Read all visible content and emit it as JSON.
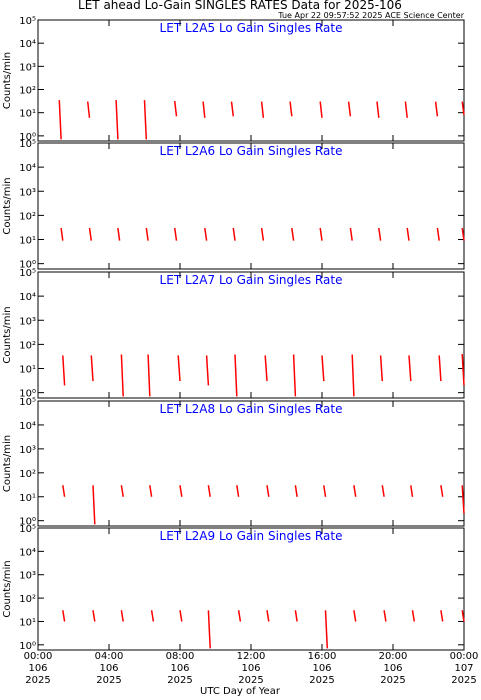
{
  "chart_data": {
    "type": "line",
    "title": "LET ahead Lo-Gain SINGLES RATES Data for 2025-106",
    "subtitle": "Tue Apr 22 09:57:52 2025 ACE Science Center",
    "xlabel": "UTC Day of Year",
    "ylabel": "Counts/min",
    "log_y": true,
    "xlim": [
      0,
      24
    ],
    "xticks": [
      {
        "value": 0,
        "label": "00:00"
      },
      {
        "value": 4,
        "label": "04:00"
      },
      {
        "value": 8,
        "label": "08:00"
      },
      {
        "value": 12,
        "label": "12:00"
      },
      {
        "value": 16,
        "label": "16:00"
      },
      {
        "value": 20,
        "label": "20:00"
      },
      {
        "value": 24,
        "label": "00:00"
      }
    ],
    "xtick_days": [
      "106",
      "106",
      "106",
      "106",
      "106",
      "106",
      "107"
    ],
    "xtick_years": [
      "2025",
      "2025",
      "2025",
      "2025",
      "2025",
      "2025",
      "2025"
    ],
    "ylim": [
      0.6,
      100000
    ],
    "yticks": [
      {
        "value": 1,
        "label": "10⁰"
      },
      {
        "value": 10,
        "label": "10¹"
      },
      {
        "value": 100,
        "label": "10²"
      },
      {
        "value": 1000,
        "label": "10³"
      },
      {
        "value": 10000,
        "label": "10⁴"
      },
      {
        "value": 100000,
        "label": "10⁵"
      }
    ],
    "panels": [
      {
        "title": "LET L2A5 Lo Gain Singles Rate",
        "color": "#ff0000",
        "x": [
          1.2,
          1.3,
          null,
          2.8,
          2.9,
          null,
          4.4,
          4.5,
          null,
          6.0,
          6.1,
          null,
          7.7,
          7.8,
          null,
          9.3,
          9.4,
          null,
          10.9,
          11.0,
          null,
          12.6,
          12.7,
          null,
          14.2,
          14.3,
          null,
          15.9,
          16.0,
          null,
          17.5,
          17.6,
          null,
          19.1,
          19.2,
          null,
          20.7,
          20.8,
          null,
          22.4,
          22.5,
          null,
          23.9,
          24.0
        ],
        "values": [
          35,
          0.7,
          null,
          30,
          6,
          null,
          35,
          0.7,
          null,
          35,
          0.7,
          null,
          32,
          7,
          null,
          30,
          6,
          null,
          30,
          7,
          null,
          30,
          6,
          null,
          30,
          7,
          null,
          30,
          6,
          null,
          30,
          7,
          null,
          30,
          6,
          null,
          30,
          6,
          null,
          30,
          7,
          null,
          30,
          8
        ]
      },
      {
        "title": "LET L2A6 Lo Gain Singles Rate",
        "color": "#ff0000",
        "x": [
          1.3,
          1.4,
          null,
          2.9,
          3.0,
          null,
          4.5,
          4.6,
          null,
          6.1,
          6.2,
          null,
          7.7,
          7.8,
          null,
          9.4,
          9.5,
          null,
          11.0,
          11.1,
          null,
          12.6,
          12.7,
          null,
          14.3,
          14.4,
          null,
          15.9,
          16.0,
          null,
          17.6,
          17.7,
          null,
          19.2,
          19.3,
          null,
          20.8,
          20.9,
          null,
          22.5,
          22.6,
          null,
          23.9,
          24.0
        ],
        "values": [
          30,
          9,
          null,
          30,
          9,
          null,
          30,
          9,
          null,
          30,
          9,
          null,
          30,
          9,
          null,
          30,
          9,
          null,
          30,
          9,
          null,
          30,
          9,
          null,
          30,
          9,
          null,
          30,
          9,
          null,
          30,
          9,
          null,
          30,
          9,
          null,
          30,
          9,
          null,
          30,
          9,
          null,
          30,
          9
        ]
      },
      {
        "title": "LET L2A7 Lo Gain Singles Rate",
        "color": "#ff0000",
        "x": [
          1.4,
          1.5,
          null,
          3.0,
          3.1,
          null,
          4.7,
          4.8,
          null,
          6.2,
          6.3,
          null,
          7.9,
          8.0,
          null,
          9.5,
          9.6,
          null,
          11.1,
          11.2,
          null,
          12.8,
          12.9,
          null,
          14.4,
          14.5,
          null,
          16.0,
          16.1,
          null,
          17.7,
          17.8,
          null,
          19.3,
          19.4,
          null,
          20.9,
          21.0,
          null,
          22.6,
          22.7,
          null,
          23.9,
          24.0
        ],
        "values": [
          35,
          2,
          null,
          35,
          3,
          null,
          38,
          0.7,
          null,
          38,
          0.7,
          null,
          35,
          3,
          null,
          35,
          2,
          null,
          38,
          0.7,
          null,
          35,
          3,
          null,
          38,
          0.7,
          null,
          35,
          3,
          null,
          38,
          0.7,
          null,
          35,
          3,
          null,
          35,
          3,
          null,
          35,
          3,
          null,
          40,
          2
        ]
      },
      {
        "title": "LET L2A8 Lo Gain Singles Rate",
        "color": "#ff0000",
        "x": [
          1.4,
          1.5,
          null,
          3.1,
          3.2,
          null,
          4.7,
          4.8,
          null,
          6.3,
          6.4,
          null,
          8.0,
          8.1,
          null,
          9.6,
          9.7,
          null,
          11.2,
          11.3,
          null,
          12.9,
          13.0,
          null,
          14.5,
          14.6,
          null,
          16.1,
          16.2,
          null,
          17.8,
          17.9,
          null,
          19.4,
          19.5,
          null,
          21.0,
          21.1,
          null,
          22.7,
          22.8,
          null,
          23.9,
          24.0
        ],
        "values": [
          30,
          10,
          null,
          30,
          0.7,
          null,
          30,
          10,
          null,
          30,
          10,
          null,
          30,
          10,
          null,
          30,
          10,
          null,
          30,
          10,
          null,
          30,
          10,
          null,
          30,
          10,
          null,
          30,
          10,
          null,
          30,
          10,
          null,
          30,
          10,
          null,
          30,
          10,
          null,
          30,
          10,
          null,
          30,
          2
        ]
      },
      {
        "title": "LET L2A9 Lo Gain Singles Rate",
        "color": "#ff0000",
        "x": [
          1.4,
          1.5,
          null,
          3.1,
          3.2,
          null,
          4.7,
          4.8,
          null,
          6.4,
          6.5,
          null,
          8.0,
          8.1,
          null,
          9.6,
          9.7,
          null,
          11.3,
          11.4,
          null,
          12.9,
          13.0,
          null,
          14.5,
          14.6,
          null,
          16.2,
          16.3,
          null,
          17.8,
          17.9,
          null,
          19.5,
          19.6,
          null,
          21.1,
          21.2,
          null,
          22.7,
          22.8,
          null,
          23.9,
          24.0
        ],
        "values": [
          30,
          10,
          null,
          30,
          10,
          null,
          30,
          10,
          null,
          30,
          10,
          null,
          30,
          10,
          null,
          30,
          0.7,
          null,
          30,
          10,
          null,
          30,
          10,
          null,
          30,
          10,
          null,
          30,
          0.7,
          null,
          30,
          10,
          null,
          30,
          10,
          null,
          30,
          10,
          null,
          30,
          10,
          null,
          30,
          10
        ]
      }
    ]
  }
}
